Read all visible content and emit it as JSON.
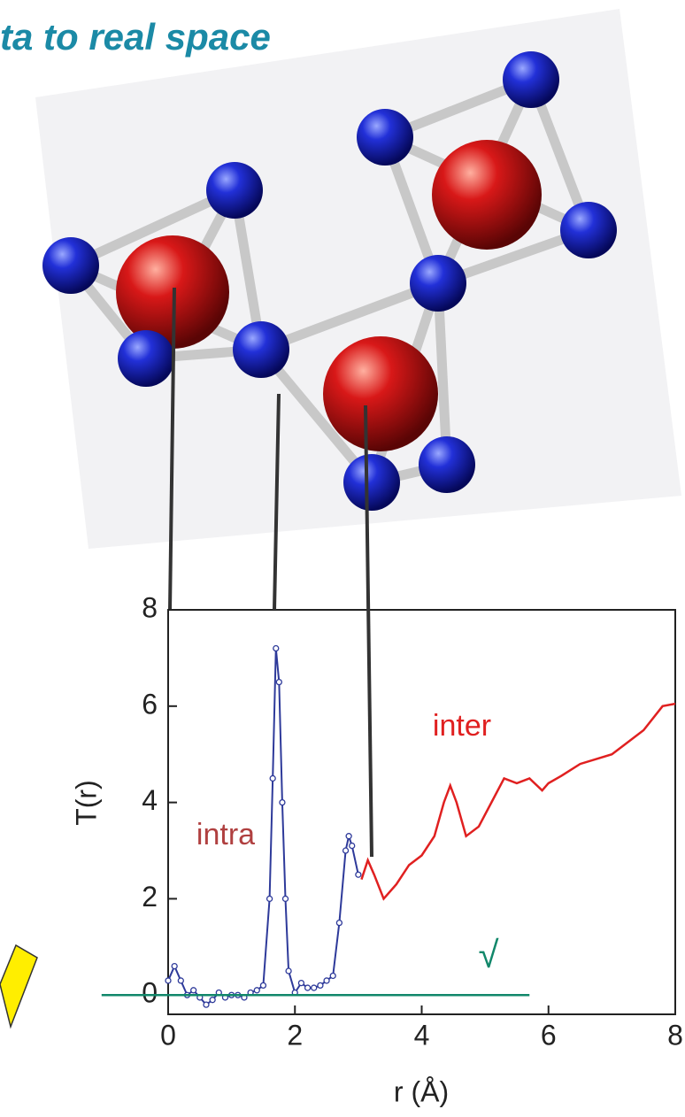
{
  "chart_data": {
    "type": "line",
    "title": "ta to real space",
    "xlabel": "r (Å)",
    "ylabel": "T(r)",
    "annotations": [
      "intra",
      "inter",
      "√"
    ],
    "xlim": [
      0,
      8
    ],
    "xticks": [
      0,
      2,
      4,
      6,
      8
    ],
    "ylim": [
      -0.4,
      8
    ],
    "yticks": [
      0,
      2,
      4,
      6,
      8
    ],
    "series": [
      {
        "color": "#2e3a9a",
        "markers": true,
        "x": [
          0.0,
          0.1,
          0.2,
          0.3,
          0.4,
          0.5,
          0.6,
          0.7,
          0.8,
          0.9,
          1.0,
          1.1,
          1.2,
          1.3,
          1.4,
          1.5,
          1.6,
          1.65,
          1.7,
          1.75,
          1.8,
          1.85,
          1.9,
          2.0,
          2.1,
          2.2,
          2.3,
          2.4,
          2.5,
          2.6,
          2.7,
          2.8,
          2.85,
          2.9,
          3.0
        ],
        "values": [
          0.3,
          0.6,
          0.3,
          0.0,
          0.1,
          -0.05,
          -0.2,
          -0.1,
          0.05,
          -0.05,
          0.0,
          0.0,
          -0.05,
          0.05,
          0.1,
          0.2,
          2.0,
          4.5,
          7.2,
          6.5,
          4.0,
          2.0,
          0.5,
          0.05,
          0.25,
          0.15,
          0.15,
          0.2,
          0.3,
          0.4,
          1.5,
          3.0,
          3.3,
          3.1,
          2.5
        ]
      },
      {
        "color": "#e02020",
        "markers": false,
        "x": [
          3.05,
          3.15,
          3.25,
          3.4,
          3.6,
          3.8,
          4.0,
          4.2,
          4.35,
          4.45,
          4.55,
          4.7,
          4.9,
          5.1,
          5.3,
          5.5,
          5.7,
          5.9,
          6.0,
          6.2,
          6.5,
          7.0,
          7.2,
          7.5,
          7.8,
          8.0
        ],
        "values": [
          2.4,
          2.8,
          2.5,
          2.0,
          2.3,
          2.7,
          2.9,
          3.3,
          4.0,
          4.35,
          4.0,
          3.3,
          3.5,
          4.0,
          4.5,
          4.4,
          4.5,
          4.25,
          4.4,
          4.55,
          4.8,
          5.0,
          5.2,
          5.5,
          6.0,
          6.05
        ]
      },
      {
        "color": "#11876a",
        "markers": false,
        "x": [
          -1.05,
          5.7
        ],
        "values": [
          0,
          0
        ]
      }
    ]
  }
}
